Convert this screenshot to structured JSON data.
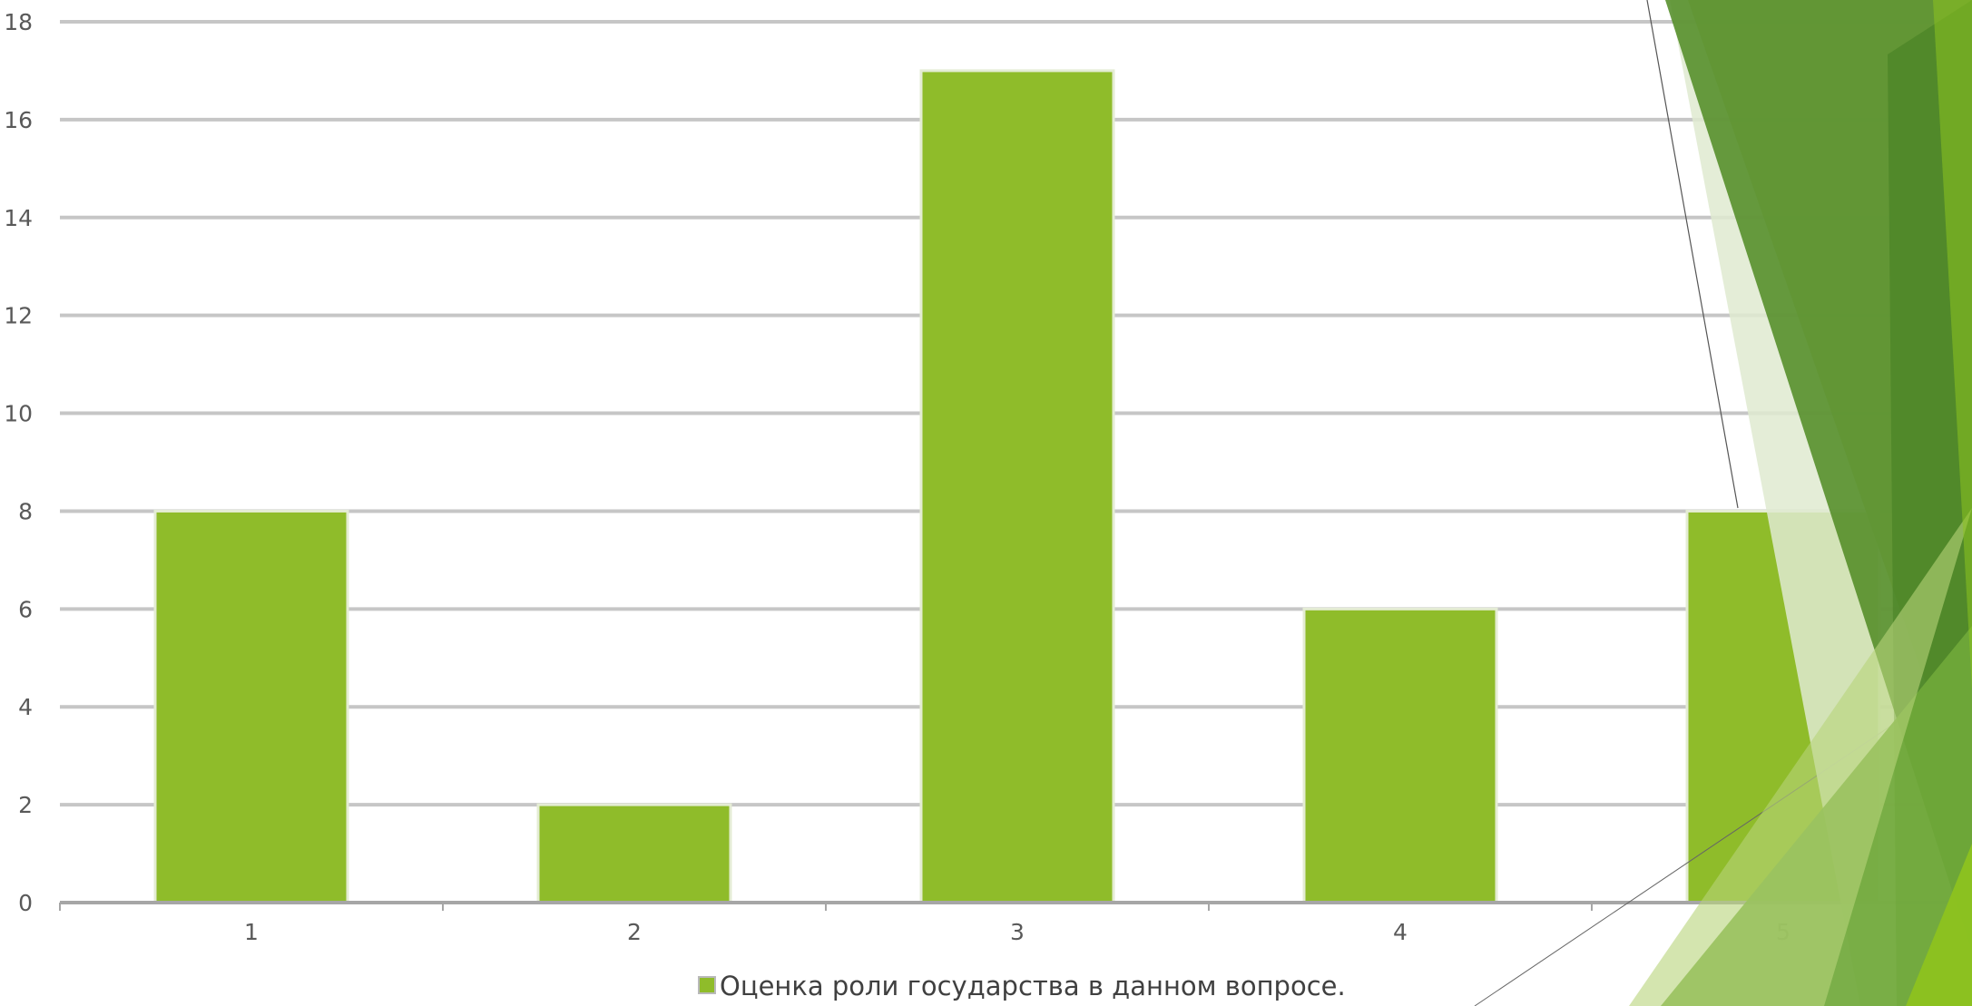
{
  "chart_data": {
    "type": "bar",
    "categories": [
      "1",
      "2",
      "3",
      "4",
      "5"
    ],
    "series": [
      {
        "name": "Оценка роли государства в данном вопросе.",
        "values": [
          8,
          2,
          17,
          6,
          8
        ]
      }
    ],
    "yticks": [
      "0",
      "2",
      "4",
      "6",
      "8",
      "10",
      "12",
      "14",
      "16",
      "18"
    ],
    "ylim": [
      0,
      18
    ],
    "grid": true,
    "legend_position": "bottom",
    "colors": {
      "bar_fill": "#8fbc2a",
      "bar_stroke": "#e4ecd4",
      "gridline": "#c6c6c6",
      "axis": "#a6a6a6",
      "decor_dark": "#4f8a22",
      "decor_mid": "#70a83a",
      "decor_light": "#c9dd9e",
      "decor_lime": "#8dc21f"
    }
  }
}
